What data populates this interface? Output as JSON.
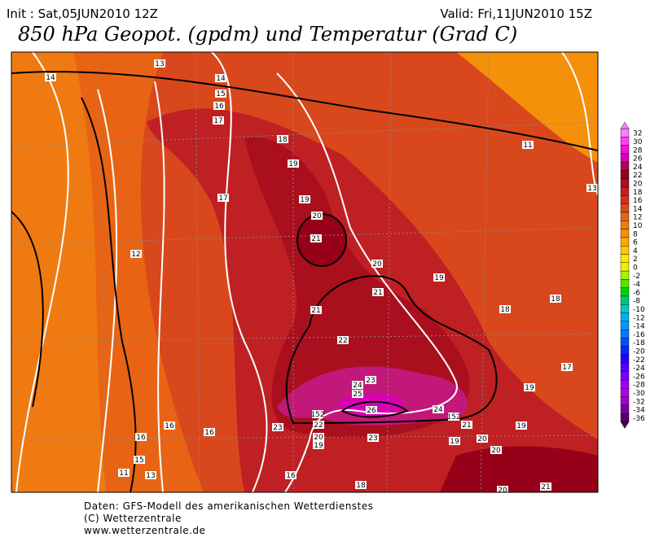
{
  "header": {
    "init": "Init : Sat,05JUN2010 12Z",
    "valid": "Valid: Fri,11JUN2010 15Z",
    "title": "850 hPa Geopot. (gpdm) und Temperatur (Grad C)"
  },
  "legend": {
    "entries": [
      {
        "label": "32",
        "color": "#ff7cff"
      },
      {
        "label": "30",
        "color": "#ff40f4"
      },
      {
        "label": "28",
        "color": "#f010dc"
      },
      {
        "label": "26",
        "color": "#d800b4"
      },
      {
        "label": "24",
        "color": "#b4005a"
      },
      {
        "label": "22",
        "color": "#960018"
      },
      {
        "label": "20",
        "color": "#aa0f1e"
      },
      {
        "label": "18",
        "color": "#be2023"
      },
      {
        "label": "16",
        "color": "#d0321e"
      },
      {
        "label": "14",
        "color": "#de4a17"
      },
      {
        "label": "12",
        "color": "#e86414"
      },
      {
        "label": "10",
        "color": "#f07a12"
      },
      {
        "label": "8",
        "color": "#f5900a"
      },
      {
        "label": "6",
        "color": "#ffaa00"
      },
      {
        "label": "4",
        "color": "#ffc800"
      },
      {
        "label": "2",
        "color": "#ffe600"
      },
      {
        "label": "0",
        "color": "#e6f000"
      },
      {
        "label": "-2",
        "color": "#aaf000"
      },
      {
        "label": "-4",
        "color": "#50e600"
      },
      {
        "label": "-6",
        "color": "#00d200"
      },
      {
        "label": "-8",
        "color": "#00c878"
      },
      {
        "label": "-10",
        "color": "#00c8c8"
      },
      {
        "label": "-12",
        "color": "#00b4e6"
      },
      {
        "label": "-14",
        "color": "#0096ff"
      },
      {
        "label": "-16",
        "color": "#0078ff"
      },
      {
        "label": "-18",
        "color": "#0050ff"
      },
      {
        "label": "-20",
        "color": "#0028ff"
      },
      {
        "label": "-22",
        "color": "#2800ff"
      },
      {
        "label": "-24",
        "color": "#5000ff"
      },
      {
        "label": "-26",
        "color": "#7800ff"
      },
      {
        "label": "-28",
        "color": "#a000ff"
      },
      {
        "label": "-30",
        "color": "#b400e6"
      },
      {
        "label": "-32",
        "color": "#a000c8"
      },
      {
        "label": "-34",
        "color": "#78009c"
      },
      {
        "label": "-36",
        "color": "#500064"
      }
    ]
  },
  "map": {
    "labels": [
      "13",
      "14",
      "14",
      "15",
      "16",
      "17",
      "18",
      "11",
      "19",
      "13",
      "17",
      "19",
      "20",
      "21",
      "12",
      "20",
      "19",
      "21",
      "21",
      "18",
      "18",
      "22",
      "17",
      "23",
      "24",
      "25",
      "19",
      "26",
      "24",
      "152",
      "21",
      "19",
      "23",
      "16",
      "16",
      "16",
      "23",
      "20",
      "19",
      "152",
      "22",
      "20",
      "19",
      "20",
      "15",
      "11",
      "13",
      "16",
      "18",
      "21",
      "20"
    ]
  },
  "footer": {
    "line1": "Daten: GFS-Modell des amerikanischen Wetterdienstes",
    "line2": "(C) Wetterzentrale",
    "line3": "www.wetterzentrale.de"
  }
}
